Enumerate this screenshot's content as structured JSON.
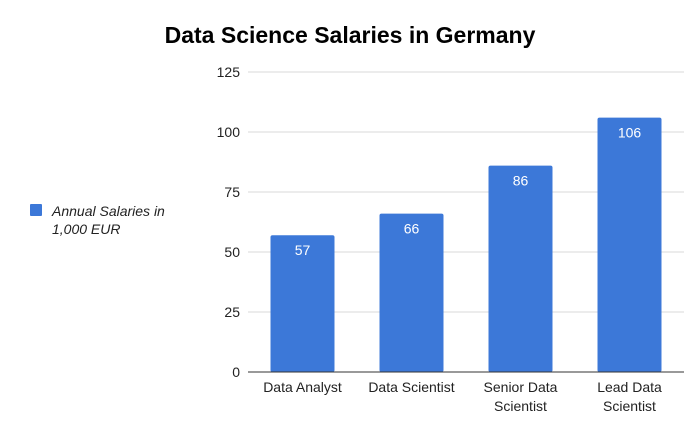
{
  "chart_data": {
    "type": "bar",
    "title": "Data Science Salaries in Germany",
    "categories": [
      [
        "Data Analyst"
      ],
      [
        "Data Scientist"
      ],
      [
        "Senior Data",
        "Scientist"
      ],
      [
        "Lead Data",
        "Scientist"
      ]
    ],
    "series": [
      {
        "name": "Annual Salaries in 1,000 EUR",
        "values": [
          57,
          66,
          86,
          106
        ],
        "color": "#3c78d8"
      }
    ],
    "data_labels": [
      "57",
      "66",
      "86",
      "106"
    ],
    "ylim": [
      0,
      125
    ],
    "yticks": [
      0,
      25,
      50,
      75,
      100,
      125
    ],
    "grid": true,
    "legend_position": "left"
  },
  "legend": {
    "label_line1": "Annual Salaries in",
    "label_line2": "1,000 EUR"
  },
  "colors": {
    "bar": "#3c78d8",
    "grid": "#d9d9d9",
    "axis": "#333333",
    "tick_text": "#222222",
    "data_label": "#ffffff"
  }
}
